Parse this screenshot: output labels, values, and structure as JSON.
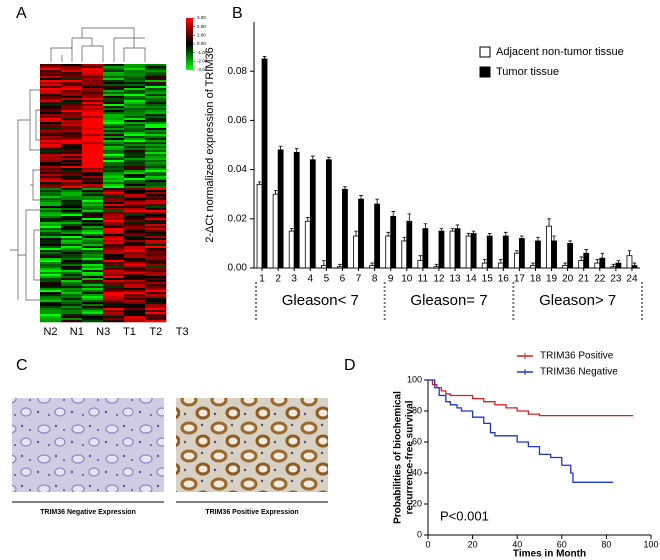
{
  "panel_labels": [
    "A",
    "B",
    "C",
    "D"
  ],
  "chart_data": [
    {
      "type": "heatmap",
      "columns": [
        "N2",
        "N1",
        "N3",
        "T1",
        "T2",
        "T3"
      ],
      "clim": [
        -3,
        3
      ],
      "colorbar_ticks": [
        {
          "value": 3,
          "label": "3.00"
        },
        {
          "value": 2,
          "label": "2.00"
        },
        {
          "value": 1,
          "label": "1.00"
        },
        {
          "value": 0,
          "label": "0.00"
        },
        {
          "value": -1,
          "label": "-1.00"
        },
        {
          "value": -2,
          "label": "-2.00"
        },
        {
          "value": -3,
          "label": "-3.00"
        }
      ]
    },
    {
      "type": "bar",
      "y_label": "2-ΔCt normalized expression of TRIM36",
      "categories": [
        "1",
        "2",
        "3",
        "4",
        "5",
        "6",
        "7",
        "8",
        "9",
        "10",
        "11",
        "12",
        "13",
        "14",
        "15",
        "16",
        "17",
        "18",
        "19",
        "20",
        "21",
        "22",
        "23",
        "24"
      ],
      "series": [
        {
          "name": "Adjacent non-tumor tissue",
          "color": "#ffffff",
          "values": [
            0.034,
            0.03,
            0.015,
            0.019,
            0.001,
            0.0005,
            0.013,
            0.001,
            0.013,
            0.011,
            0.003,
            0.0005,
            0.015,
            0.013,
            0.002,
            0.002,
            0.006,
            0.001,
            0.017,
            0.001,
            0.003,
            0.002,
            0.0005,
            0.005
          ],
          "errors": [
            0.001,
            0.0015,
            0.001,
            0.0015,
            0.002,
            0.001,
            0.002,
            0.001,
            0.0015,
            0.0015,
            0.002,
            0.001,
            0.001,
            0.001,
            0.0015,
            0.0015,
            0.001,
            0.001,
            0.003,
            0.001,
            0.0015,
            0.0015,
            0.001,
            0.002
          ]
        },
        {
          "name": "Tumor tissue",
          "color": "#000000",
          "values": [
            0.085,
            0.048,
            0.047,
            0.044,
            0.044,
            0.032,
            0.028,
            0.026,
            0.021,
            0.019,
            0.016,
            0.015,
            0.016,
            0.014,
            0.013,
            0.013,
            0.012,
            0.011,
            0.011,
            0.01,
            0.006,
            0.004,
            0.002,
            0.001
          ],
          "errors": [
            0.001,
            0.0015,
            0.0015,
            0.0015,
            0.001,
            0.001,
            0.0015,
            0.002,
            0.002,
            0.003,
            0.002,
            0.001,
            0.0015,
            0.001,
            0.001,
            0.0015,
            0.001,
            0.0015,
            0.002,
            0.001,
            0.0015,
            0.002,
            0.001,
            0.001
          ]
        }
      ],
      "ylim": [
        0,
        0.1
      ],
      "yticks": [
        {
          "value": 0,
          "label": "0.00"
        },
        {
          "value": 0.02,
          "label": "0.02"
        },
        {
          "value": 0.04,
          "label": "0.04"
        },
        {
          "value": 0.06,
          "label": "0.06"
        },
        {
          "value": 0.08,
          "label": "0.08"
        }
      ],
      "groups": [
        {
          "label": "Gleason< 7",
          "from": "1",
          "to": "8"
        },
        {
          "label": "Gleason= 7",
          "from": "9",
          "to": "16"
        },
        {
          "label": "Gleason> 7",
          "from": "17",
          "to": "24"
        }
      ],
      "legend": "upper right"
    },
    {
      "type": "line",
      "x_label": "Times in Month",
      "y_label": [
        "Probabilities of biochemical",
        "recurrence-free survival"
      ],
      "annotation": "P<0.001",
      "series": [
        {
          "name": "TRIM36 Positive",
          "color": "#d62020",
          "x": [
            0,
            2,
            4,
            6,
            8,
            10,
            20,
            25,
            30,
            35,
            40,
            45,
            50,
            92
          ],
          "values": [
            100,
            97,
            95,
            93,
            91,
            90,
            88,
            86,
            84,
            82,
            80,
            78,
            77,
            77
          ]
        },
        {
          "name": "TRIM36 Negative",
          "color": "#1f35c8",
          "x": [
            0,
            3,
            5,
            8,
            10,
            13,
            15,
            20,
            25,
            28,
            30,
            40,
            45,
            50,
            55,
            60,
            64,
            65,
            83
          ],
          "values": [
            100,
            95,
            90,
            86,
            84,
            82,
            80,
            76,
            72,
            66,
            64,
            60,
            57,
            52,
            50,
            45,
            40,
            34,
            34
          ]
        }
      ],
      "xlim": [
        0,
        100
      ],
      "xticks": [
        0,
        20,
        40,
        60,
        80,
        100
      ],
      "ylim": [
        0,
        100
      ],
      "yticks": [
        0,
        20,
        40,
        60,
        80,
        100
      ],
      "legend": "upper right"
    }
  ],
  "images": [
    {
      "caption": "TRIM36 Negative Expression"
    },
    {
      "caption": "TRIM36 Positive Expression"
    }
  ]
}
